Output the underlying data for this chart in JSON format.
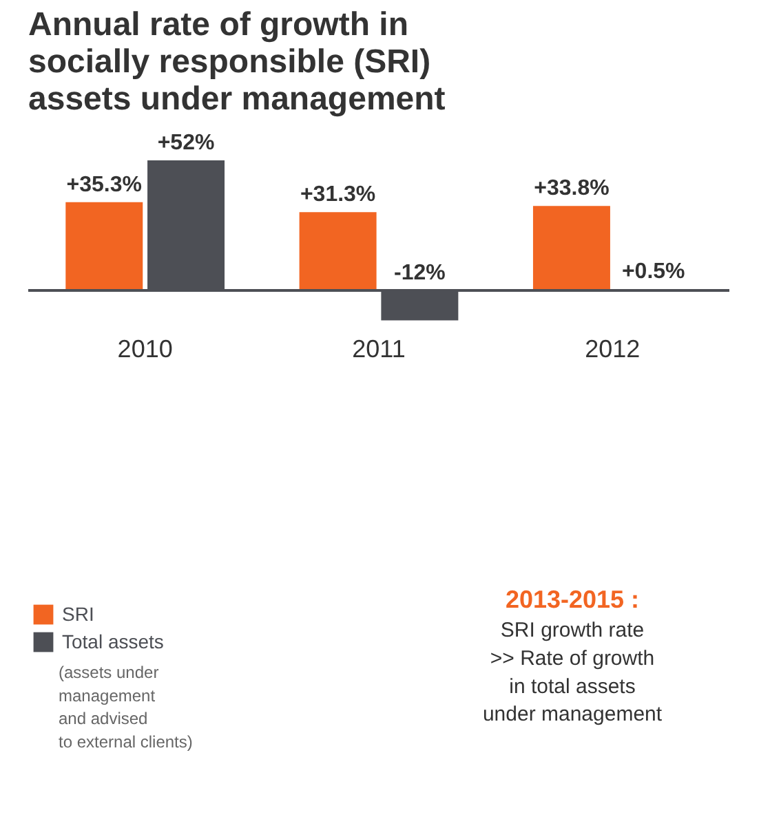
{
  "chart_data": {
    "type": "bar",
    "title": "Annual rate of growth in socially responsible (SRI) assets under management",
    "categories": [
      "2010",
      "2011",
      "2012"
    ],
    "series": [
      {
        "name": "SRI",
        "color": "#f26522",
        "values": [
          35.3,
          31.3,
          33.8
        ],
        "value_labels": [
          "+35.3%",
          "+31.3%",
          "+33.8%"
        ]
      },
      {
        "name": "Total assets",
        "color": "#4d4f55",
        "values": [
          52,
          -12,
          0.5
        ],
        "value_labels": [
          "+52%",
          "-12%",
          "+0.5%"
        ]
      }
    ],
    "legend": "bottom left",
    "annotations": [
      "(assets under\nmanagement\nand advised\nto external clients)",
      "2013-2015 :",
      "SRI growth rate\n>> Rate of growth\nin total assets\nunder management"
    ]
  }
}
